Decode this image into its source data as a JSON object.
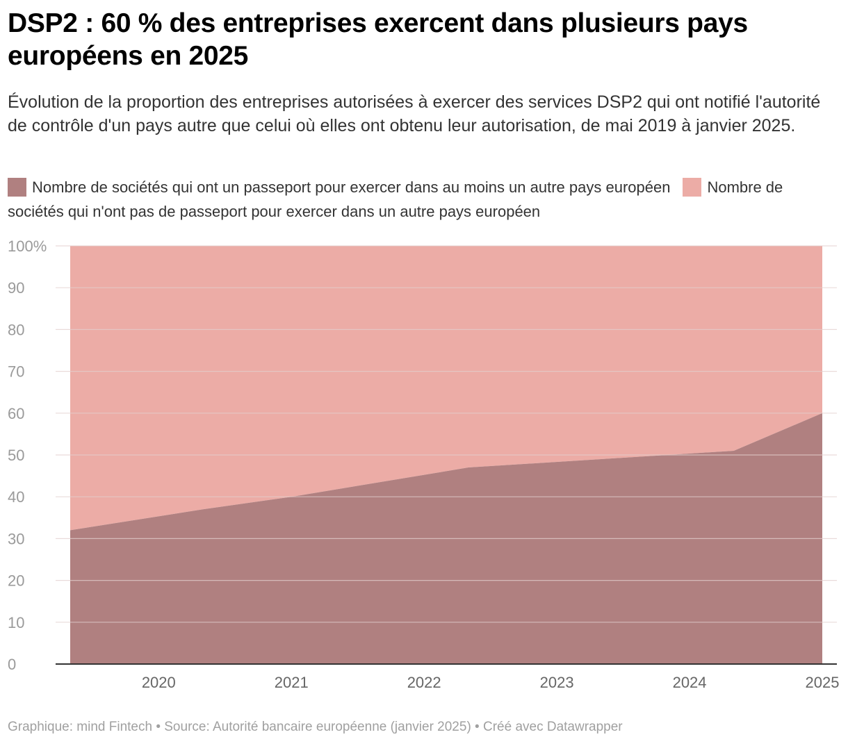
{
  "title": "DSP2 : 60 % des entreprises exercent dans plusieurs pays européens en 2025",
  "subtitle": "Évolution de la proportion des entreprises autorisées à exercer des services DSP2 qui ont notifié l'autorité de contrôle d'un pays autre que celui où elles ont obtenu leur autorisation, de mai 2019 à janvier 2025.",
  "footer": "Graphique: mind Fintech • Source: Autorité bancaire européenne (janvier 2025) • Créé avec Datawrapper",
  "colors": {
    "passport": "#b08080",
    "no_passport": "#ecaca6",
    "grid": "#e3cfcd",
    "axis": "#333333"
  },
  "chart_data": {
    "type": "area",
    "stacked": true,
    "percent_stacked": true,
    "x": [
      "2019-05",
      "2020-05",
      "2021-01",
      "2022-05",
      "2023-05",
      "2024-05",
      "2025-01"
    ],
    "series": [
      {
        "name": "Nombre de sociétés qui ont un passeport pour exercer dans au moins un autre pays européen",
        "values": [
          32,
          37,
          40,
          47,
          49,
          51,
          60
        ]
      },
      {
        "name": "Nombre de sociétés qui n'ont pas de passeport pour exercer dans un autre pays européen",
        "values": [
          68,
          63,
          60,
          53,
          51,
          49,
          40
        ]
      }
    ],
    "xticks": [
      "2020",
      "2021",
      "2022",
      "2023",
      "2024",
      "2025"
    ],
    "yticks": [
      "0",
      "10",
      "20",
      "30",
      "40",
      "50",
      "60",
      "70",
      "80",
      "90",
      "100%"
    ],
    "ylim": [
      0,
      100
    ],
    "grid": true,
    "legend_position": "top"
  }
}
